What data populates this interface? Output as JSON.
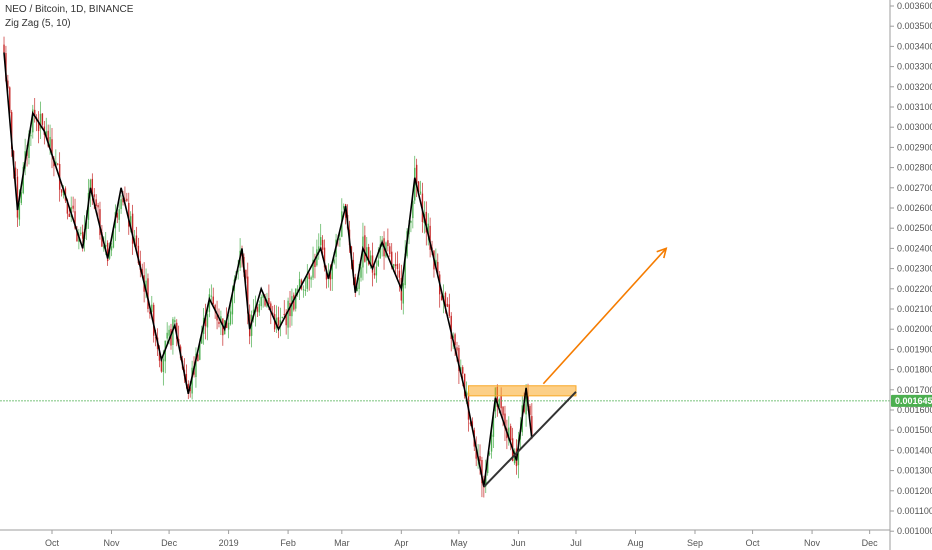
{
  "header": {
    "title": "NEO / Bitcoin, 1D, BINANCE",
    "indicator": "Zig Zag (5, 10)"
  },
  "colors": {
    "up_candle": "#4caf50",
    "down_candle": "#c62828",
    "zigzag": "#000000",
    "resistance_zone": "#f9a825",
    "projection_arrow": "#f57c00",
    "price_line": "#4caf50",
    "axis_text": "#555555"
  },
  "chart_data": {
    "type": "candlestick",
    "symbol": "NEO / Bitcoin",
    "interval": "1D",
    "exchange": "BINANCE",
    "current_price": "0.001645",
    "current_price_value": 0.001645,
    "ylim": [
      0.00104,
      0.00363
    ],
    "y_ticks": [
      "0.003600",
      "0.003500",
      "0.003400",
      "0.003300",
      "0.003200",
      "0.003100",
      "0.003000",
      "0.002900",
      "0.002800",
      "0.002700",
      "0.002600",
      "0.002500",
      "0.002400",
      "0.002300",
      "0.002200",
      "0.002100",
      "0.002000",
      "0.001900",
      "0.001800",
      "0.001700",
      "0.001600",
      "0.001500",
      "0.001400",
      "0.001300",
      "0.001200",
      "0.001100",
      "0.001000"
    ],
    "x_ticks": [
      {
        "label": "Oct",
        "date": "2018-10-01"
      },
      {
        "label": "Nov",
        "date": "2018-11-01"
      },
      {
        "label": "Dec",
        "date": "2018-12-01"
      },
      {
        "label": "2019",
        "date": "2019-01-01"
      },
      {
        "label": "Feb",
        "date": "2019-02-01"
      },
      {
        "label": "Mar",
        "date": "2019-03-01"
      },
      {
        "label": "Apr",
        "date": "2019-04-01"
      },
      {
        "label": "May",
        "date": "2019-05-01"
      },
      {
        "label": "Jun",
        "date": "2019-06-01"
      },
      {
        "label": "Jul",
        "date": "2019-07-01"
      },
      {
        "label": "Aug",
        "date": "2019-08-01"
      },
      {
        "label": "Sep",
        "date": "2019-09-01"
      },
      {
        "label": "Oct",
        "date": "2019-10-01"
      },
      {
        "label": "Nov",
        "date": "2019-11-01"
      },
      {
        "label": "Dec",
        "date": "2019-12-01"
      }
    ],
    "zigzag": [
      {
        "date": "2018-09-06",
        "price": 0.00337
      },
      {
        "date": "2018-09-13",
        "price": 0.00259
      },
      {
        "date": "2018-09-21",
        "price": 0.00307
      },
      {
        "date": "2018-09-27",
        "price": 0.00298
      },
      {
        "date": "2018-10-17",
        "price": 0.0024
      },
      {
        "date": "2018-10-21",
        "price": 0.0027
      },
      {
        "date": "2018-10-30",
        "price": 0.00235
      },
      {
        "date": "2018-11-06",
        "price": 0.0027
      },
      {
        "date": "2018-11-20",
        "price": 0.00215
      },
      {
        "date": "2018-11-27",
        "price": 0.00185
      },
      {
        "date": "2018-12-04",
        "price": 0.00202
      },
      {
        "date": "2018-12-11",
        "price": 0.00168
      },
      {
        "date": "2018-12-22",
        "price": 0.00215
      },
      {
        "date": "2018-12-30",
        "price": 0.002
      },
      {
        "date": "2019-01-08",
        "price": 0.0024
      },
      {
        "date": "2019-01-12",
        "price": 0.002
      },
      {
        "date": "2019-01-18",
        "price": 0.0022
      },
      {
        "date": "2019-01-27",
        "price": 0.002
      },
      {
        "date": "2019-02-18",
        "price": 0.0024
      },
      {
        "date": "2019-02-22",
        "price": 0.00225
      },
      {
        "date": "2019-03-03",
        "price": 0.00261
      },
      {
        "date": "2019-03-08",
        "price": 0.00218
      },
      {
        "date": "2019-03-12",
        "price": 0.0024
      },
      {
        "date": "2019-03-17",
        "price": 0.0023
      },
      {
        "date": "2019-03-22",
        "price": 0.00243
      },
      {
        "date": "2019-04-01",
        "price": 0.0022
      },
      {
        "date": "2019-04-08",
        "price": 0.00275
      },
      {
        "date": "2019-05-04",
        "price": 0.0017
      },
      {
        "date": "2019-05-14",
        "price": 0.00122
      },
      {
        "date": "2019-05-20",
        "price": 0.00166
      },
      {
        "date": "2019-05-31",
        "price": 0.00135
      },
      {
        "date": "2019-06-05",
        "price": 0.00171
      },
      {
        "date": "2019-06-08",
        "price": 0.00146
      }
    ],
    "support_trendline": {
      "from": {
        "date": "2019-05-14",
        "price": 0.00122
      },
      "to": {
        "date": "2019-07-01",
        "price": 0.00169
      }
    },
    "resistance_zone": {
      "start": "2019-05-06",
      "end": "2019-07-01",
      "low": 0.00167,
      "high": 0.00172
    },
    "projection_arrow": {
      "from": {
        "date": "2019-06-14",
        "price": 0.00173
      },
      "to": {
        "date": "2019-08-17",
        "price": 0.0024
      }
    }
  }
}
